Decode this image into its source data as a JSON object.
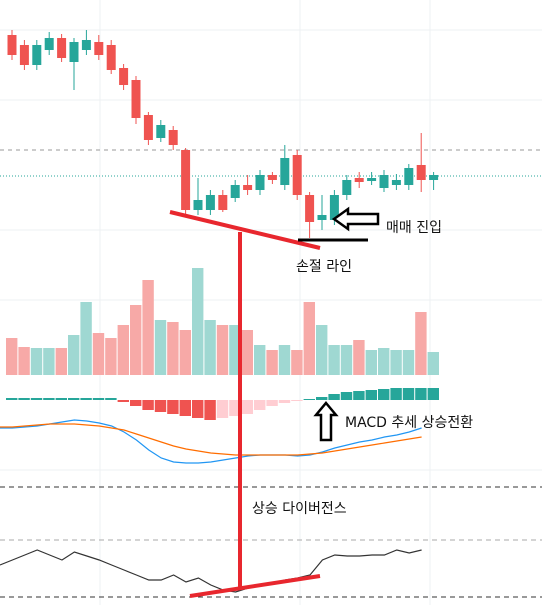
{
  "chart_data": {
    "type": "candlestick",
    "up_color": "#26a69a",
    "down_color": "#ef5350",
    "ylim": [
      0,
      300
    ],
    "open": [
      265,
      255,
      235,
      250,
      262,
      238,
      250,
      258,
      255,
      232,
      220,
      185,
      162,
      170,
      150,
      90,
      90,
      105,
      102,
      115,
      110,
      125,
      115,
      145,
      105,
      80,
      80,
      105,
      122,
      119,
      112,
      115,
      115,
      135,
      120
    ],
    "high": [
      270,
      260,
      260,
      268,
      266,
      262,
      270,
      265,
      260,
      236,
      224,
      188,
      180,
      174,
      152,
      122,
      110,
      110,
      120,
      125,
      130,
      128,
      155,
      150,
      108,
      105,
      110,
      125,
      128,
      128,
      130,
      126,
      136,
      167,
      128
    ],
    "low": [
      240,
      230,
      230,
      245,
      238,
      210,
      245,
      240,
      226,
      210,
      176,
      155,
      158,
      150,
      85,
      85,
      85,
      88,
      98,
      105,
      105,
      116,
      110,
      100,
      62,
      70,
      75,
      100,
      112,
      115,
      108,
      110,
      110,
      108,
      110
    ],
    "close": [
      245,
      235,
      255,
      262,
      242,
      258,
      260,
      245,
      230,
      215,
      182,
      160,
      175,
      155,
      90,
      100,
      105,
      90,
      115,
      110,
      125,
      120,
      142,
      105,
      78,
      85,
      105,
      120,
      118,
      122,
      125,
      120,
      132,
      120,
      125
    ],
    "volume_ylim": [
      0,
      115
    ],
    "volume": [
      37,
      28,
      27,
      27,
      27,
      40,
      73,
      42,
      37,
      50,
      70,
      95,
      55,
      53,
      45,
      107,
      55,
      50,
      50,
      45,
      30,
      25,
      30,
      25,
      73,
      50,
      30,
      30,
      35,
      25,
      27,
      25,
      25,
      63,
      23
    ],
    "macd_ylim": [
      -75,
      25
    ],
    "macd_hist": [
      2,
      2,
      2,
      2,
      2,
      2,
      2,
      2,
      2,
      -2,
      -6,
      -10,
      -12,
      -14,
      -16,
      -18,
      -20,
      -18,
      -16,
      -14,
      -10,
      -6,
      -3,
      -1,
      1,
      3,
      6,
      8,
      9,
      10,
      11,
      12,
      12,
      12,
      12
    ],
    "macd": [
      -28,
      -28,
      -27,
      -26,
      -24,
      -22,
      -20,
      -21,
      -23,
      -26,
      -32,
      -40,
      -50,
      -58,
      -62,
      -63,
      -63,
      -62,
      -60,
      -58,
      -56,
      -55,
      -55,
      -55,
      -56,
      -55,
      -52,
      -48,
      -45,
      -42,
      -40,
      -37,
      -35,
      -32,
      -28
    ],
    "signal": [
      -27,
      -27,
      -26,
      -25,
      -24,
      -24,
      -24,
      -25,
      -26,
      -28,
      -30,
      -34,
      -38,
      -42,
      -46,
      -49,
      -51,
      -53,
      -54,
      -55,
      -55,
      -55,
      -55,
      -55,
      -55,
      -54,
      -53,
      -51,
      -49,
      -47,
      -45,
      -43,
      -41,
      -39,
      -37
    ],
    "osc_ylim": [
      0,
      100
    ],
    "oscillator": [
      35,
      40,
      45,
      50,
      45,
      40,
      48,
      44,
      40,
      35,
      30,
      25,
      20,
      20,
      25,
      18,
      22,
      15,
      10,
      8,
      12,
      15,
      17,
      20,
      22,
      25,
      40,
      45,
      44,
      44,
      45,
      45,
      50,
      47,
      50
    ],
    "annotations": [
      "매매 진입",
      "손절 라인",
      "MACD 추세 상승전환",
      "상승 다이버전스"
    ]
  }
}
